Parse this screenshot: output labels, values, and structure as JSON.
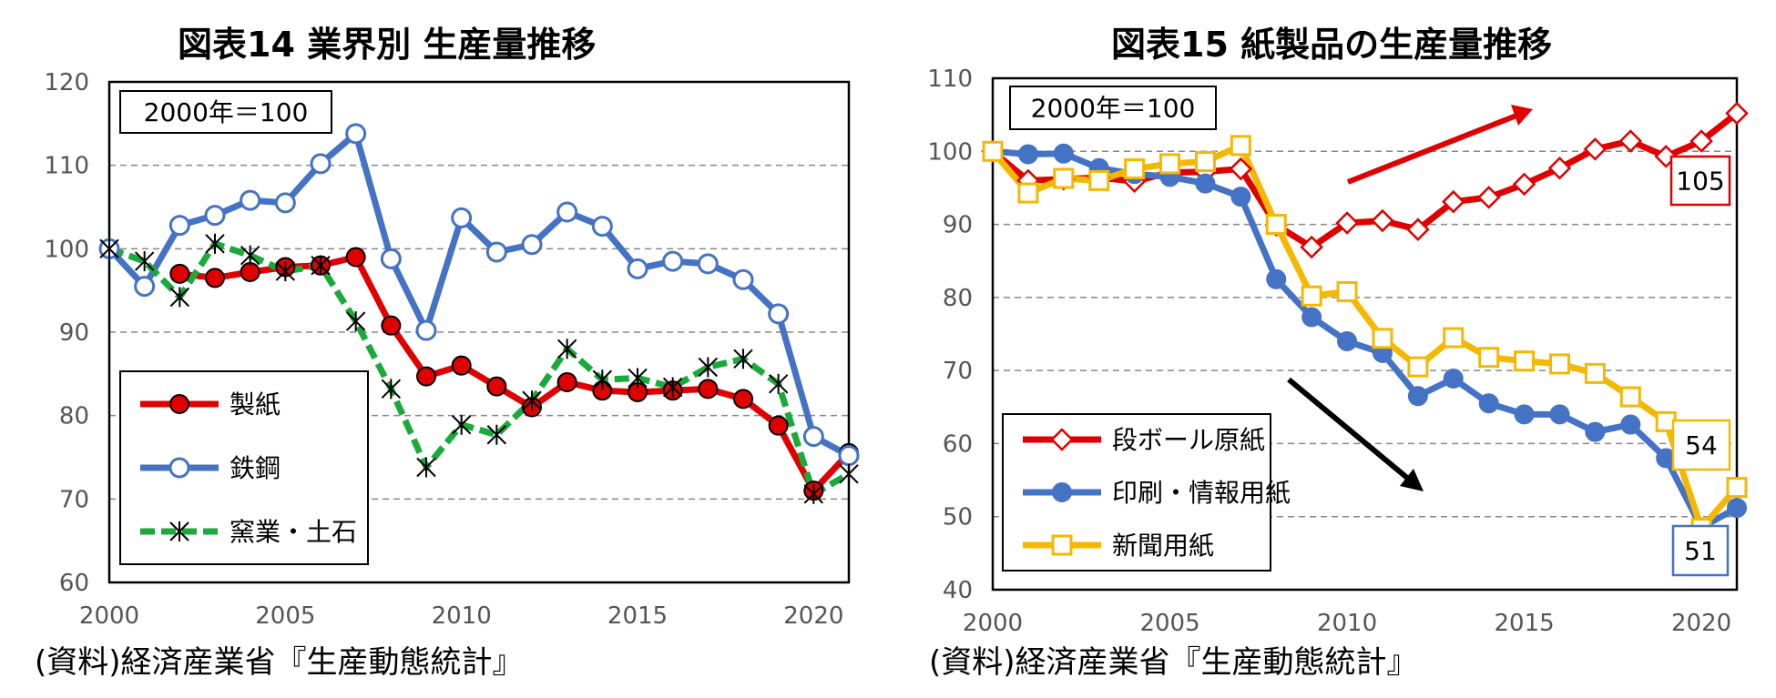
{
  "chart_data": [
    {
      "type": "line",
      "title": "図表14  業界別  生産量推移",
      "note": "2000年＝100",
      "source": "(資料)経済産業省『生産動態統計』",
      "xlim": [
        2000,
        2021
      ],
      "ylim": [
        60,
        120
      ],
      "xticks": [
        2000,
        2005,
        2010,
        2015,
        2020
      ],
      "yticks": [
        60,
        70,
        80,
        90,
        100,
        110,
        120
      ],
      "grid": "horizontal-dashed",
      "legend": "bottom-left",
      "series": [
        {
          "name": "製紙",
          "color": "#e00000",
          "marker": "filled-circle",
          "x": [
            2002,
            2003,
            2004,
            2005,
            2006,
            2007,
            2008,
            2009,
            2010,
            2011,
            2012,
            2013,
            2014,
            2015,
            2016,
            2017,
            2018,
            2019,
            2020,
            2021
          ],
          "values": [
            97,
            96.5,
            97.2,
            97.8,
            98,
            99,
            90.8,
            84.7,
            86,
            83.5,
            81,
            84,
            83,
            82.8,
            83,
            83.2,
            82,
            78.8,
            71,
            75.5
          ]
        },
        {
          "name": "鉄鋼",
          "color": "#4472c4",
          "marker": "open-circle",
          "x": [
            2000,
            2001,
            2002,
            2003,
            2004,
            2005,
            2006,
            2007,
            2008,
            2009,
            2010,
            2011,
            2012,
            2013,
            2014,
            2015,
            2016,
            2017,
            2018,
            2019,
            2020,
            2021
          ],
          "values": [
            100,
            95.5,
            102.8,
            104,
            105.8,
            105.5,
            110.2,
            113.8,
            98.8,
            90.2,
            103.7,
            99.6,
            100.5,
            104.4,
            102.7,
            97.6,
            98.5,
            98.2,
            96.3,
            92.2,
            77.5,
            75.2
          ]
        },
        {
          "name": "窯業・土石",
          "color": "#1aaa3a",
          "marker": "asterisk",
          "dashed": true,
          "x": [
            2000,
            2001,
            2002,
            2003,
            2004,
            2005,
            2006,
            2007,
            2008,
            2009,
            2010,
            2011,
            2012,
            2013,
            2014,
            2015,
            2016,
            2017,
            2018,
            2019,
            2020,
            2021
          ],
          "values": [
            100,
            98.5,
            94.2,
            100.6,
            99.2,
            97.3,
            98,
            91.3,
            83.2,
            73.8,
            78.9,
            77.7,
            81.8,
            88,
            84.3,
            84.5,
            83.4,
            85.8,
            86.8,
            83.8,
            70.6,
            73
          ]
        }
      ]
    },
    {
      "type": "line",
      "title": "図表15  紙製品の生産量推移",
      "note": "2000年＝100",
      "source": "(資料)経済産業省『生産動態統計』",
      "xlim": [
        2000,
        2021
      ],
      "ylim": [
        40,
        110
      ],
      "xticks": [
        2000,
        2005,
        2010,
        2015,
        2020
      ],
      "yticks": [
        40,
        50,
        60,
        70,
        80,
        90,
        100,
        110
      ],
      "grid": "horizontal-dashed",
      "legend": "bottom-left",
      "annotations": [
        {
          "label": "105",
          "color": "#e00000"
        },
        {
          "label": "54",
          "color": "#f5b800"
        },
        {
          "label": "51",
          "color": "#4472c4"
        }
      ],
      "series": [
        {
          "name": "段ボール原紙",
          "color": "#e00000",
          "marker": "open-diamond",
          "x": [
            2000,
            2001,
            2002,
            2003,
            2004,
            2005,
            2006,
            2007,
            2008,
            2009,
            2010,
            2011,
            2012,
            2013,
            2014,
            2015,
            2016,
            2017,
            2018,
            2019,
            2020,
            2021
          ],
          "values": [
            100,
            96,
            96.2,
            96.4,
            95.9,
            97.1,
            97.2,
            97.6,
            89.9,
            86.9,
            90.2,
            90.5,
            89.3,
            93.1,
            93.7,
            95.5,
            97.7,
            100.3,
            101.4,
            99.3,
            101.4,
            105.2
          ]
        },
        {
          "name": "印刷・情報用紙",
          "color": "#4472c4",
          "marker": "filled-circle",
          "x": [
            2000,
            2001,
            2002,
            2003,
            2004,
            2005,
            2006,
            2007,
            2008,
            2009,
            2010,
            2011,
            2012,
            2013,
            2014,
            2015,
            2016,
            2017,
            2018,
            2019,
            2020,
            2021
          ],
          "values": [
            100,
            99.6,
            99.7,
            97.7,
            96.9,
            96.5,
            95.6,
            93.8,
            82.5,
            77.3,
            74,
            72.4,
            66.5,
            68.9,
            65.5,
            64,
            64,
            61.6,
            62.6,
            58,
            48.5,
            51.2
          ]
        },
        {
          "name": "新聞用紙",
          "color": "#f5b800",
          "marker": "open-square",
          "x": [
            2000,
            2001,
            2002,
            2003,
            2004,
            2005,
            2006,
            2007,
            2008,
            2009,
            2010,
            2011,
            2012,
            2013,
            2014,
            2015,
            2016,
            2017,
            2018,
            2019,
            2020,
            2021
          ],
          "values": [
            100,
            94.3,
            96.3,
            96,
            97.6,
            98.3,
            98.6,
            100.8,
            90,
            80.2,
            80.8,
            74.4,
            70.5,
            74.5,
            71.8,
            71.3,
            70.9,
            69.6,
            66.4,
            63,
            48.4,
            54
          ]
        }
      ]
    }
  ]
}
